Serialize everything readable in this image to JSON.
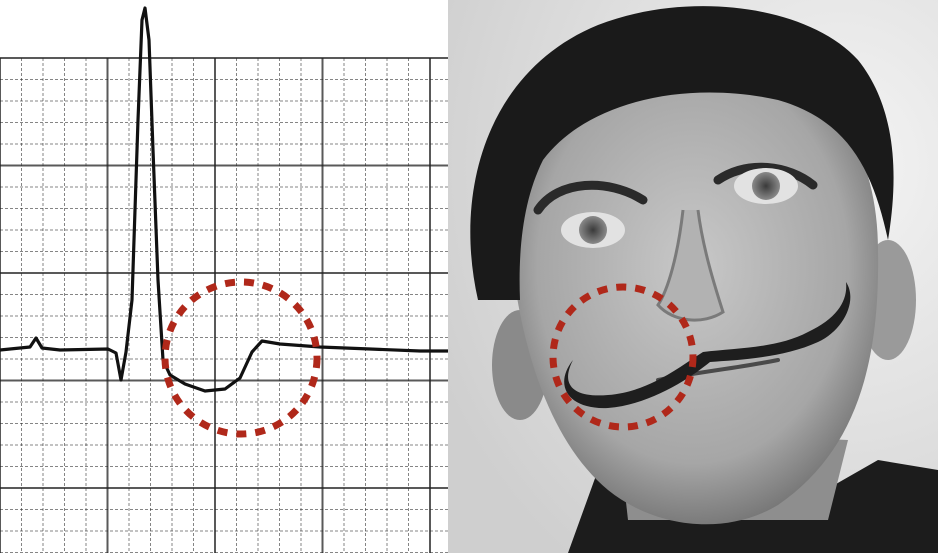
{
  "composition": {
    "left_panel": "ecg-strip",
    "right_panel": "portrait-photo"
  },
  "annotation_color": "#b0281a",
  "ecg": {
    "grid_color": "#222222",
    "trace_color": "#111111",
    "highlighted_feature": "inverted-t-wave"
  },
  "photo": {
    "tone": "black-and-white",
    "highlighted_feature": "upturned-mustache"
  }
}
